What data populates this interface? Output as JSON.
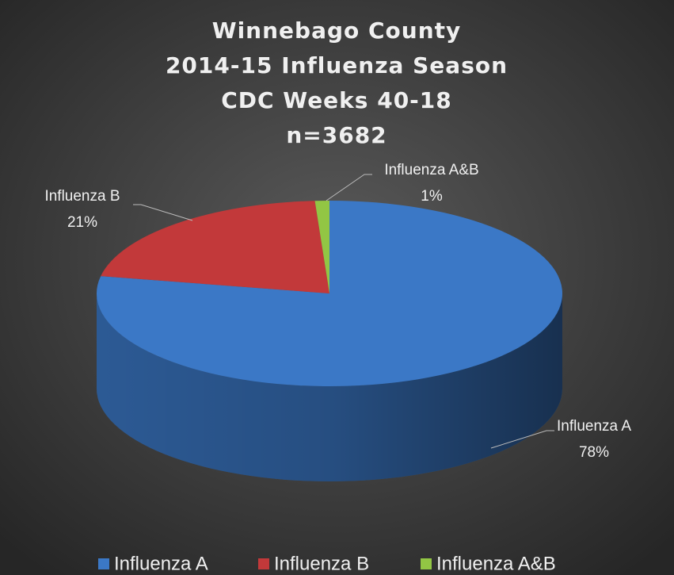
{
  "chart_data": {
    "type": "pie",
    "title": [
      "Winnebago County",
      "2014-15 Influenza Season",
      "CDC Weeks 40-18",
      "n=3682"
    ],
    "categories": [
      "Influenza A",
      "Influenza B",
      "Influenza A&B"
    ],
    "values": [
      78,
      21,
      1
    ],
    "value_labels": [
      "78%",
      "21%",
      "1%"
    ],
    "colors": [
      "#3b78c6",
      "#c2393a",
      "#92c644"
    ],
    "legend": "bottom"
  }
}
